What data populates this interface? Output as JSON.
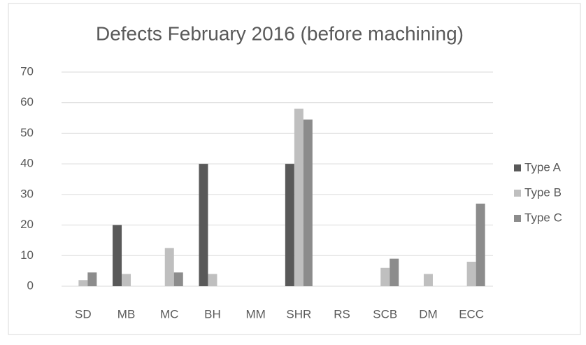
{
  "chart_data": {
    "type": "bar",
    "title": "Defects February 2016 (before machining)",
    "categories": [
      "SD",
      "MB",
      "MC",
      "BH",
      "MM",
      "SHR",
      "RS",
      "SCB",
      "DM",
      "ECC"
    ],
    "series": [
      {
        "name": "Type A",
        "color": "#595959",
        "values": [
          0,
          20,
          0,
          40,
          0,
          40,
          0,
          0,
          0,
          0
        ]
      },
      {
        "name": "Type B",
        "color": "#bfbfbf",
        "values": [
          2,
          4,
          12.5,
          4,
          0,
          58,
          0,
          6,
          4,
          8
        ]
      },
      {
        "name": "Type C",
        "color": "#8c8c8c",
        "values": [
          4.5,
          0,
          4.5,
          0,
          0,
          54.5,
          0,
          9,
          0,
          27
        ]
      }
    ],
    "ylim": [
      0,
      70
    ],
    "yticks": [
      0,
      10,
      20,
      30,
      40,
      50,
      60,
      70
    ],
    "grid": true,
    "legend": "right"
  }
}
